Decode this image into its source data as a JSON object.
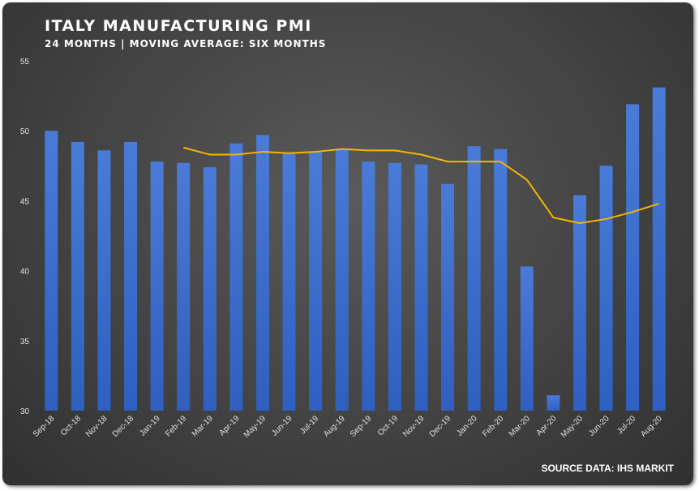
{
  "header": {
    "title": "ITALY MANUFACTURING PMI",
    "subtitle": "24 MONTHS | MOVING AVERAGE: SIX MONTHS"
  },
  "footer": {
    "source": "SOURCE DATA: IHS MARKIT"
  },
  "colors": {
    "bar": "#4a7bd8",
    "bar_dark": "#2f5fbf",
    "line": "#f5b500",
    "background": "#474747"
  },
  "chart_data": {
    "type": "bar",
    "title": "ITALY MANUFACTURING PMI",
    "subtitle": "24 MONTHS | MOVING AVERAGE: SIX MONTHS",
    "xlabel": "",
    "ylabel": "",
    "ylim": [
      30,
      55
    ],
    "yticks": [
      30,
      35,
      40,
      45,
      50,
      55
    ],
    "grid": false,
    "legend": "none",
    "categories": [
      "Sep-18",
      "Oct-18",
      "Nov-18",
      "Dec-18",
      "Jan-19",
      "Feb-19",
      "Mar-19",
      "Apr-19",
      "May-19",
      "Jun-19",
      "Jul-19",
      "Aug-19",
      "Sep-19",
      "Oct-19",
      "Nov-19",
      "Dec-19",
      "Jan-20",
      "Feb-20",
      "Mar-20",
      "Apr-20",
      "May-20",
      "Jun-20",
      "Jul-20",
      "Aug-20"
    ],
    "series": [
      {
        "type": "bar",
        "values": [
          50.0,
          49.2,
          48.6,
          49.2,
          47.8,
          47.7,
          47.4,
          49.1,
          49.7,
          48.4,
          48.5,
          48.7,
          47.8,
          47.7,
          47.6,
          46.2,
          48.9,
          48.7,
          40.3,
          31.1,
          45.4,
          47.5,
          51.9,
          53.1
        ]
      },
      {
        "type": "line",
        "values": [
          null,
          null,
          null,
          null,
          null,
          48.8,
          48.3,
          48.3,
          48.5,
          48.4,
          48.5,
          48.7,
          48.6,
          48.6,
          48.3,
          47.8,
          47.8,
          47.8,
          46.5,
          43.8,
          43.4,
          43.7,
          44.2,
          44.8
        ]
      }
    ]
  }
}
